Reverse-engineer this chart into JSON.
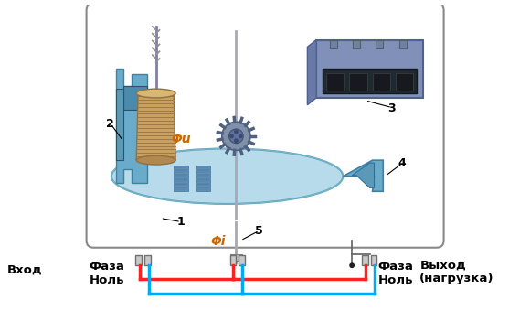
{
  "background_color": "#ffffff",
  "red_color": "#ff2020",
  "blue_color": "#00aaee",
  "box_edge_color": "#888888",
  "label_1": "1",
  "label_2": "2",
  "label_3": "3",
  "label_4": "4",
  "label_5": "5",
  "phi_u": "Φu",
  "phi_i": "Φi",
  "vkhod": "Вход",
  "vykhod": "Выход",
  "nagruzka": "(нагрузка)",
  "faza": "Фаза",
  "nol": "Ноль",
  "disk_color": "#b0d8e8",
  "coil_color": "#c8a060",
  "frame_color": "#6aabcc",
  "bracket_color": "#5a9ab8",
  "counter_color": "#7090b0",
  "wire_red": "#ff2020",
  "wire_blue": "#00aaee"
}
